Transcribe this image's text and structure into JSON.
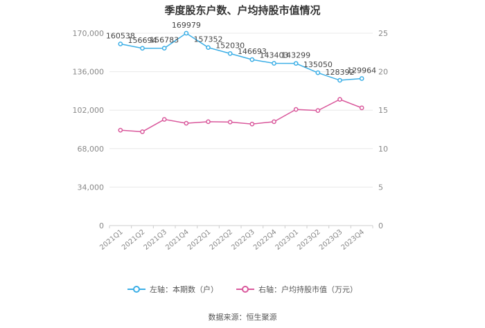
{
  "colors": {
    "left_series": "#3aaee6",
    "right_series": "#d9579b",
    "grid": "#e8e8e8",
    "axis_text": "#888888"
  },
  "footer": {
    "source": "数据来源：恒生聚源"
  },
  "chart_data": {
    "type": "line",
    "title": "季度股东户数、户均持股市值情况",
    "categories": [
      "2021Q1",
      "2021Q2",
      "2021Q3",
      "2021Q4",
      "2022Q1",
      "2022Q2",
      "2022Q3",
      "2022Q4",
      "2023Q1",
      "2023Q2",
      "2023Q3",
      "2023Q4"
    ],
    "y_left": {
      "ylim": [
        0,
        170000
      ],
      "ticks": [
        0,
        34000,
        68000,
        102000,
        136000,
        170000
      ],
      "tick_labels": [
        "0",
        "34,000",
        "68,000",
        "102,000",
        "136,000",
        "170,000"
      ]
    },
    "y_right": {
      "ylim": [
        0,
        25
      ],
      "ticks": [
        0,
        5,
        10,
        15,
        20,
        25
      ],
      "tick_labels": [
        "0",
        "5",
        "10",
        "15",
        "20",
        "25"
      ]
    },
    "grid": true,
    "legend_position": "bottom",
    "series": [
      {
        "name": "左轴：本期数（户）",
        "axis": "left",
        "values": [
          160538,
          156694,
          156783,
          169979,
          157352,
          152030,
          146693,
          143403,
          143299,
          135050,
          128392,
          129964
        ],
        "labels": [
          "160538",
          "156694",
          "156783",
          "169979",
          "157352",
          "152030",
          "146693",
          "143403",
          "143299",
          "135050",
          "128392",
          "129964"
        ]
      },
      {
        "name": "右轴：户均持股市值（万元）",
        "axis": "right",
        "values": [
          12.4,
          12.2,
          13.8,
          13.3,
          13.5,
          13.45,
          13.2,
          13.5,
          15.1,
          14.95,
          16.4,
          15.3
        ]
      }
    ]
  }
}
